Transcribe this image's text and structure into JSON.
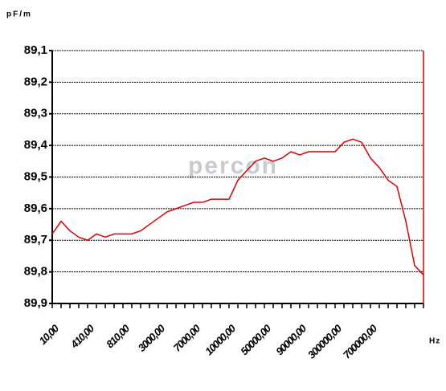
{
  "chart_data": {
    "type": "line",
    "y_label": "pF/m",
    "x_label": "Hz",
    "watermark": "percon",
    "categories": [
      "10,00",
      null,
      null,
      null,
      "410,00",
      null,
      null,
      null,
      "810,00",
      null,
      null,
      null,
      "3000,00",
      null,
      null,
      null,
      "7000,00",
      null,
      null,
      null,
      "10000,00",
      null,
      null,
      null,
      "50000,00",
      null,
      null,
      null,
      "90000,00",
      null,
      null,
      null,
      "300000,00",
      null,
      null,
      null,
      "700000,00",
      null,
      null,
      null,
      null,
      null,
      null
    ],
    "series": [
      {
        "name": "pF/m",
        "color": "#e00000",
        "values": [
          89.68,
          89.64,
          89.67,
          89.69,
          89.7,
          89.68,
          89.69,
          89.68,
          89.68,
          89.68,
          89.67,
          89.65,
          89.63,
          89.61,
          89.6,
          89.59,
          89.58,
          89.58,
          89.57,
          89.57,
          89.57,
          89.51,
          89.48,
          89.45,
          89.44,
          89.45,
          89.44,
          89.42,
          89.43,
          89.42,
          89.42,
          89.42,
          89.42,
          89.39,
          89.38,
          89.39,
          89.44,
          89.47,
          89.51,
          89.53,
          89.64,
          89.78,
          89.81
        ]
      }
    ],
    "ylim": [
      89.1,
      89.9
    ],
    "y_inverted": true,
    "yticks": [
      {
        "value": 89.1,
        "label": "89,1"
      },
      {
        "value": 89.2,
        "label": "89,2"
      },
      {
        "value": 89.3,
        "label": "89,3"
      },
      {
        "value": 89.4,
        "label": "89,4"
      },
      {
        "value": 89.5,
        "label": "89,5"
      },
      {
        "value": 89.6,
        "label": "89,6"
      },
      {
        "value": 89.7,
        "label": "89,7"
      },
      {
        "value": 89.8,
        "label": "89,8"
      },
      {
        "value": 89.9,
        "label": "89,9"
      }
    ],
    "grid": true
  }
}
